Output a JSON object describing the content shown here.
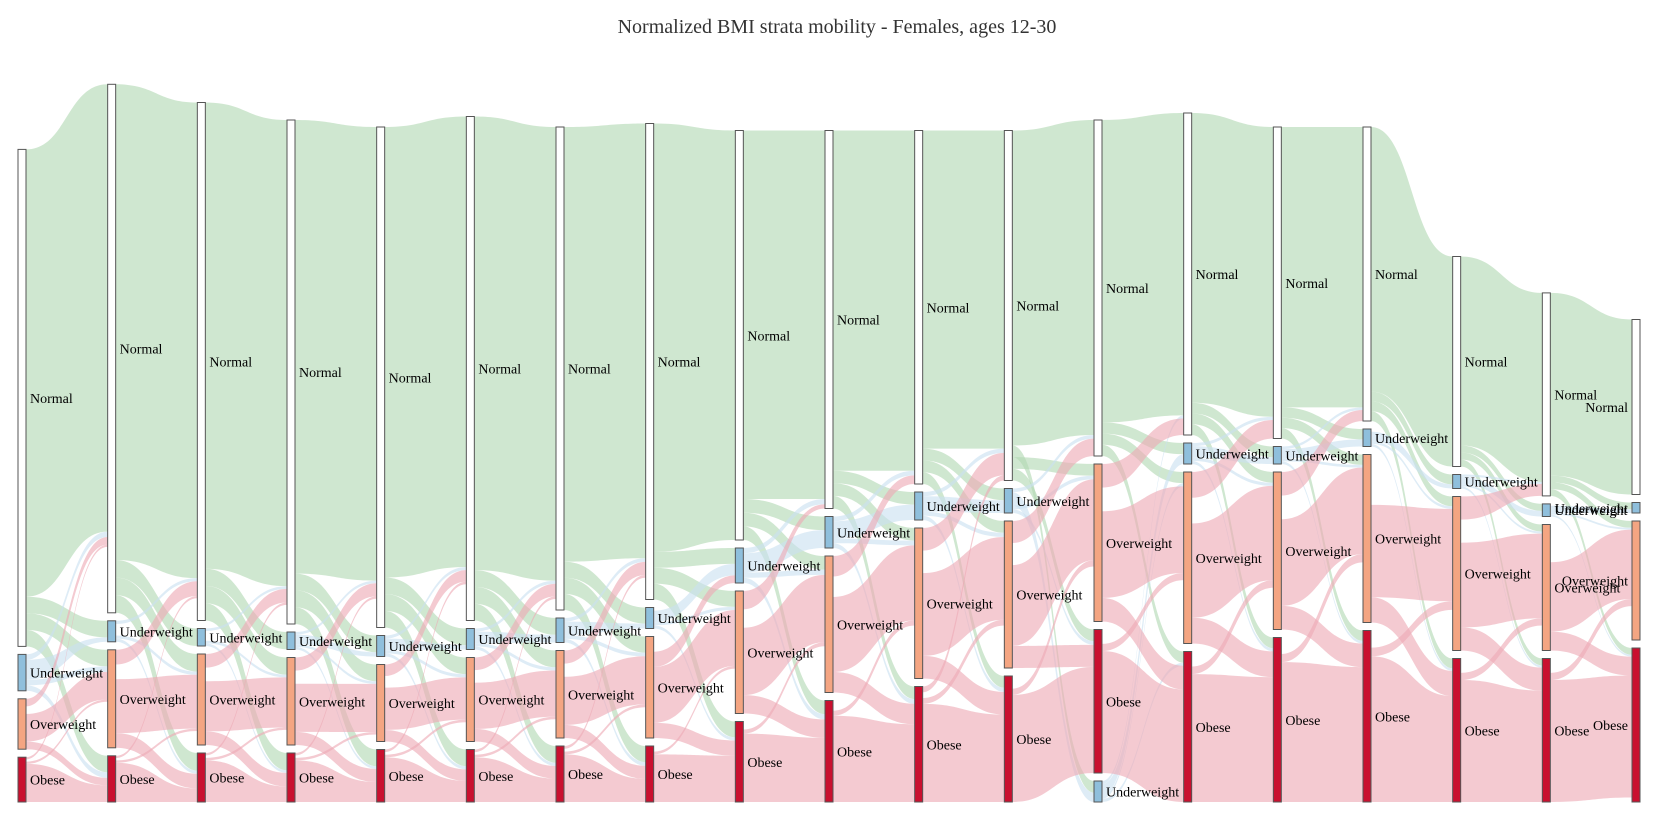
{
  "chart_data": {
    "type": "sankey",
    "title": "Normalized BMI strata mobility - Females, ages 12-30",
    "category_colors": {
      "Normal": "#ffffff",
      "Underweight": "#8fbfdc",
      "Overweight": "#f4a582",
      "Obese": "#c9102f"
    },
    "link_colors": {
      "Normal": "#b2d8b3",
      "Underweight": "#c9e0f0",
      "Overweight": "#eeaab5",
      "Obese": "#eeaab5"
    },
    "label_order": [
      "Normal",
      "Underweight",
      "Overweight",
      "Obese"
    ],
    "columns": [
      {
        "Normal": 0.71,
        "Underweight": 0.052,
        "Overweight": 0.072,
        "Obese": 0.064,
        "Underweight_label": "Underweight"
      },
      {
        "Normal": 0.755,
        "Underweight": 0.03,
        "Overweight": 0.14,
        "Obese": 0.066
      },
      {
        "Normal": 0.74,
        "Underweight": 0.025,
        "Overweight": 0.13,
        "Obese": 0.07
      },
      {
        "Normal": 0.72,
        "Underweight": 0.025,
        "Overweight": 0.125,
        "Obese": 0.07
      },
      {
        "Normal": 0.715,
        "Underweight": 0.03,
        "Overweight": 0.11,
        "Obese": 0.075
      },
      {
        "Normal": 0.72,
        "Underweight": 0.03,
        "Overweight": 0.12,
        "Obese": 0.075
      },
      {
        "Normal": 0.69,
        "Underweight": 0.035,
        "Overweight": 0.125,
        "Obese": 0.08
      },
      {
        "Normal": 0.68,
        "Underweight": 0.03,
        "Overweight": 0.145,
        "Obese": 0.08
      },
      {
        "Normal": 0.585,
        "Underweight": 0.05,
        "Overweight": 0.175,
        "Obese": 0.115
      },
      {
        "Normal": 0.54,
        "Underweight": 0.045,
        "Overweight": 0.195,
        "Obese": 0.145
      },
      {
        "Normal": 0.505,
        "Underweight": 0.04,
        "Overweight": 0.215,
        "Obese": 0.165
      },
      {
        "Normal": 0.5,
        "Underweight": 0.035,
        "Overweight": 0.21,
        "Obese": 0.18
      },
      {
        "Normal": 0.48,
        "Underweight": 0.03,
        "Overweight": 0.225,
        "Obese": 0.205
      },
      {
        "Normal": 0.46,
        "Underweight": 0.03,
        "Overweight": 0.245,
        "Obese": 0.215
      },
      {
        "Normal": 0.445,
        "Underweight": 0.025,
        "Overweight": 0.225,
        "Obese": 0.235
      },
      {
        "Normal": 0.42,
        "Underweight": 0.025,
        "Overweight": 0.24,
        "Obese": 0.245
      },
      {
        "Normal": 0.3,
        "Underweight": 0.02,
        "Overweight": 0.22,
        "Obese": 0.205
      },
      {
        "Normal": 0.29,
        "Underweight": 0.018,
        "Overweight": 0.18,
        "Obese": 0.205
      },
      {
        "Normal": 0.25,
        "Underweight": 0.015,
        "Overweight": 0.17,
        "Obese": 0.22
      }
    ],
    "special_positions": {
      "12": {
        "Underweight": "bottom"
      }
    }
  }
}
